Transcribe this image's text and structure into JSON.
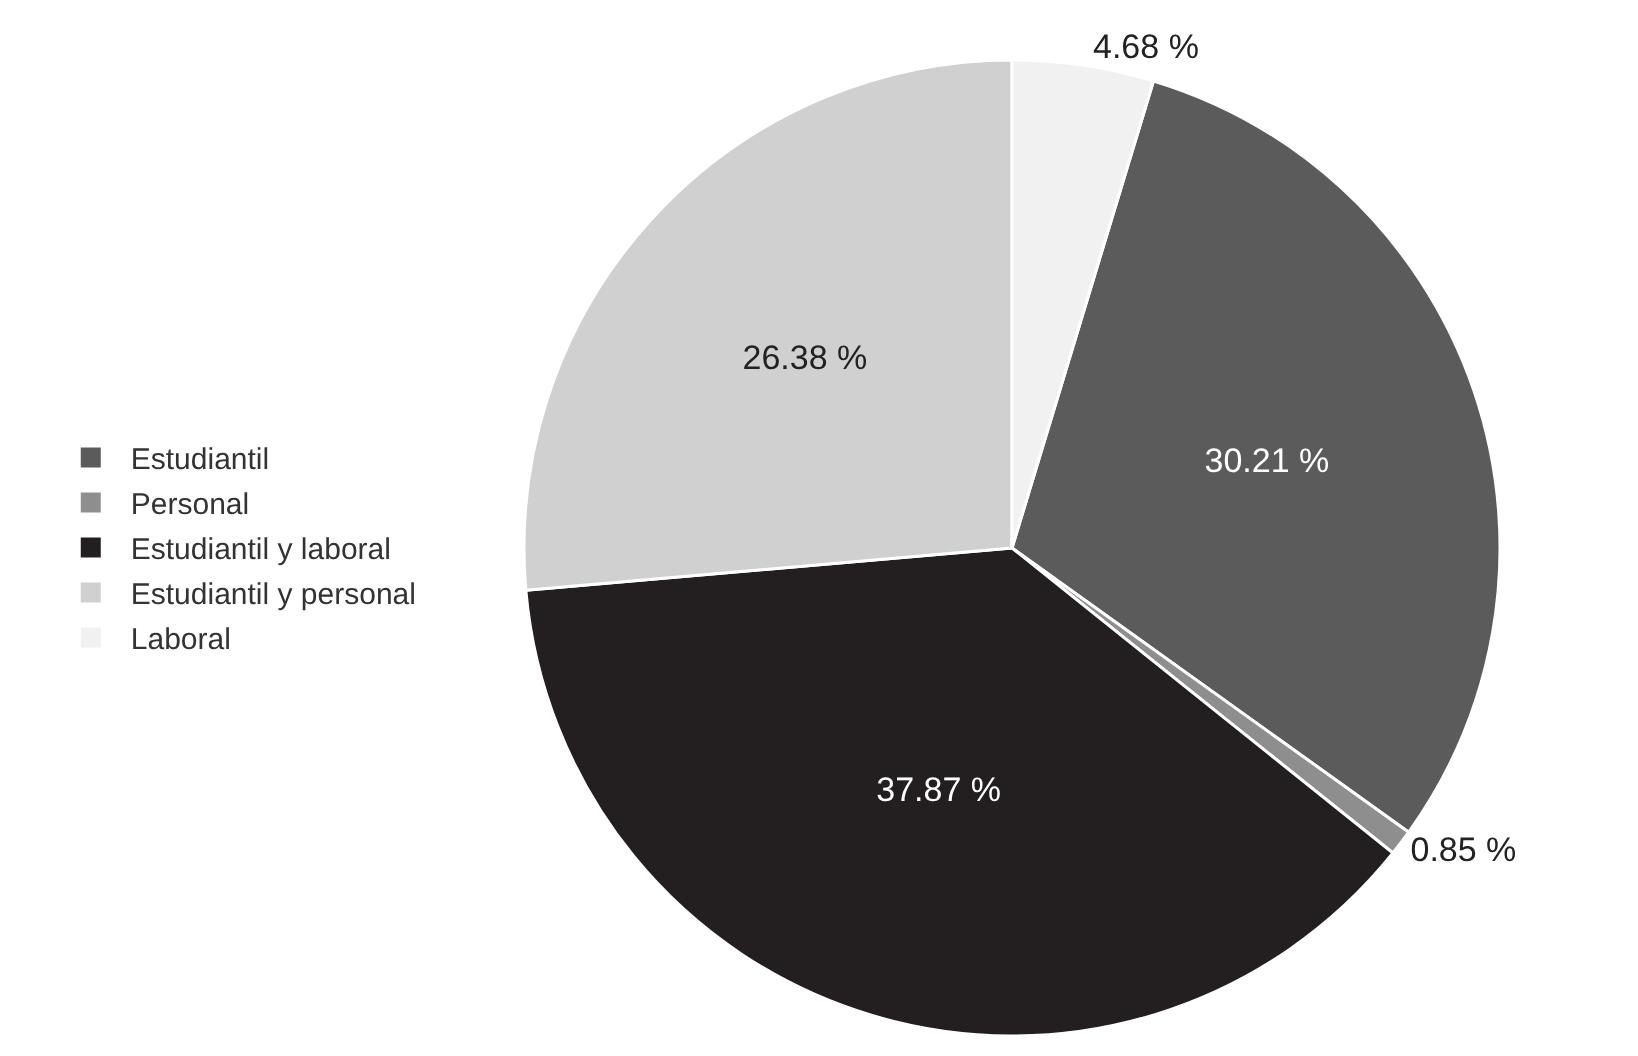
{
  "chart_data": {
    "type": "pie",
    "categories": [
      "Estudiantil",
      "Personal",
      "Estudiantil y laboral",
      "Estudiantil y personal",
      "Laboral"
    ],
    "values": [
      30.21,
      0.85,
      37.87,
      26.38,
      4.68
    ],
    "colors": [
      "#5b5b5b",
      "#8e8e8e",
      "#231f20",
      "#d0d0d0",
      "#f1f1f1"
    ],
    "value_labels": [
      "30.21 %",
      "0.85 %",
      "37.87 %",
      "26.38 %",
      "4.68 %"
    ],
    "legend": "left"
  }
}
